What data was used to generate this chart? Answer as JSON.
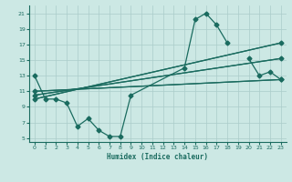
{
  "xlabel": "Humidex (Indice chaleur)",
  "background_color": "#cce8e4",
  "grid_color": "#aaccca",
  "line_color": "#1a6b5f",
  "xlim": [
    -0.5,
    23.5
  ],
  "ylim": [
    4.5,
    22
  ],
  "yticks": [
    5,
    7,
    9,
    11,
    13,
    15,
    17,
    19,
    21
  ],
  "xticks": [
    0,
    1,
    2,
    3,
    4,
    5,
    6,
    7,
    8,
    9,
    10,
    11,
    12,
    13,
    14,
    15,
    16,
    17,
    18,
    19,
    20,
    21,
    22,
    23
  ],
  "curve_x": [
    0,
    1,
    2,
    3,
    4,
    5,
    6,
    7,
    8,
    9,
    14,
    15,
    16,
    17,
    18
  ],
  "curve_y": [
    13,
    10,
    10,
    9.5,
    6.5,
    7.5,
    6.0,
    5.2,
    5.2,
    10.5,
    14.0,
    20.2,
    21.0,
    19.5,
    17.2
  ],
  "line1_x": [
    0,
    23
  ],
  "line1_y": [
    10.0,
    17.2
  ],
  "line2_x": [
    0,
    23
  ],
  "line2_y": [
    10.5,
    15.2
  ],
  "line3_x": [
    0,
    23
  ],
  "line3_y": [
    11.0,
    12.5
  ],
  "marker_x": [
    1,
    2,
    9,
    14,
    15,
    16,
    17,
    18,
    20,
    21,
    22,
    23
  ],
  "marker_y": [
    10,
    10,
    10.5,
    14.0,
    20.2,
    21.0,
    19.5,
    17.2,
    15.2,
    13.0,
    13.5,
    12.5
  ]
}
